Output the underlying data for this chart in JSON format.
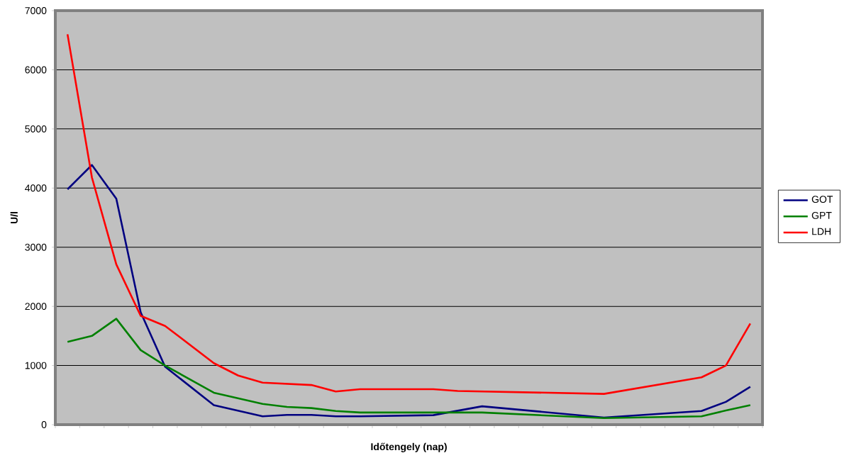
{
  "chart_data": {
    "type": "line",
    "xlabel": "Időtengely (nap)",
    "ylabel": "U/l",
    "categories": [
      null,
      null,
      null,
      null,
      null,
      null,
      null,
      null,
      null,
      null,
      null,
      null,
      null,
      null,
      null,
      null,
      null,
      null,
      null,
      null,
      null,
      null,
      null,
      null,
      null,
      null,
      null,
      null,
      null
    ],
    "series": [
      {
        "name": "GOT",
        "color": "#000080",
        "values": [
          3980,
          4390,
          3820,
          1900,
          980,
          null,
          330,
          null,
          140,
          165,
          165,
          140,
          140,
          null,
          null,
          160,
          null,
          310,
          null,
          null,
          null,
          null,
          120,
          null,
          null,
          null,
          230,
          385,
          640
        ]
      },
      {
        "name": "GPT",
        "color": "#008000",
        "values": [
          1400,
          1500,
          1790,
          1260,
          1000,
          null,
          540,
          null,
          350,
          300,
          280,
          230,
          205,
          null,
          null,
          205,
          null,
          205,
          null,
          null,
          null,
          null,
          110,
          null,
          null,
          null,
          140,
          240,
          330
        ]
      },
      {
        "name": "LDH",
        "color": "#ff0000",
        "values": [
          6600,
          4180,
          2710,
          1840,
          1670,
          null,
          1040,
          830,
          710,
          null,
          670,
          560,
          600,
          null,
          null,
          600,
          570,
          null,
          null,
          null,
          null,
          null,
          520,
          null,
          null,
          null,
          800,
          1000,
          1710
        ]
      }
    ],
    "ylim": [
      0,
      7000
    ],
    "yticks": [
      0,
      1000,
      2000,
      3000,
      4000,
      5000,
      6000,
      7000
    ],
    "grid": "y",
    "legend": "right",
    "marker": "none",
    "line_style": "solid"
  }
}
